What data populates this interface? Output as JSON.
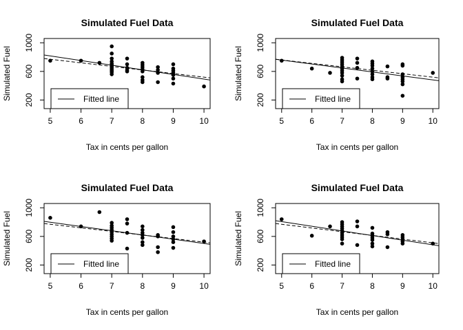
{
  "chart_data": [
    {
      "type": "scatter",
      "title": "Simulated Fuel Data",
      "xlabel": "Tax in cents per gallon",
      "ylabel": "Simulated Fuel",
      "xlim": [
        4.8,
        10.2
      ],
      "ylim": [
        80,
        1060
      ],
      "x_ticks": [
        5,
        6,
        7,
        8,
        9,
        10
      ],
      "y_ticks": [
        200,
        600,
        1000
      ],
      "legend": {
        "position": "bottom-left",
        "entries": [
          "Fitted line"
        ]
      },
      "grid": false,
      "fitted_line": {
        "style": "solid",
        "x": [
          4.8,
          10.2
        ],
        "y": [
          830,
          480
        ]
      },
      "reference_line": {
        "style": "dashed",
        "x": [
          4.8,
          10.2
        ],
        "y": [
          780,
          510
        ]
      },
      "points": [
        {
          "x": 5,
          "y": 750
        },
        {
          "x": 6,
          "y": 750
        },
        {
          "x": 6.6,
          "y": 720
        },
        {
          "x": 7,
          "y": 950
        },
        {
          "x": 7,
          "y": 850
        },
        {
          "x": 7,
          "y": 780
        },
        {
          "x": 7,
          "y": 740
        },
        {
          "x": 7,
          "y": 710
        },
        {
          "x": 7,
          "y": 690
        },
        {
          "x": 7,
          "y": 670
        },
        {
          "x": 7,
          "y": 650
        },
        {
          "x": 7,
          "y": 630
        },
        {
          "x": 7,
          "y": 610
        },
        {
          "x": 7,
          "y": 590
        },
        {
          "x": 7,
          "y": 560
        },
        {
          "x": 7.5,
          "y": 780
        },
        {
          "x": 7.5,
          "y": 700
        },
        {
          "x": 7.5,
          "y": 650
        },
        {
          "x": 7.5,
          "y": 620
        },
        {
          "x": 7.5,
          "y": 600
        },
        {
          "x": 8,
          "y": 720
        },
        {
          "x": 8,
          "y": 690
        },
        {
          "x": 8,
          "y": 660
        },
        {
          "x": 8,
          "y": 630
        },
        {
          "x": 8,
          "y": 600
        },
        {
          "x": 8,
          "y": 520
        },
        {
          "x": 8,
          "y": 480
        },
        {
          "x": 8,
          "y": 450
        },
        {
          "x": 8.5,
          "y": 660
        },
        {
          "x": 8.5,
          "y": 620
        },
        {
          "x": 8.5,
          "y": 580
        },
        {
          "x": 8.5,
          "y": 450
        },
        {
          "x": 9,
          "y": 700
        },
        {
          "x": 9,
          "y": 640
        },
        {
          "x": 9,
          "y": 610
        },
        {
          "x": 9,
          "y": 580
        },
        {
          "x": 9,
          "y": 550
        },
        {
          "x": 9,
          "y": 500
        },
        {
          "x": 9,
          "y": 430
        },
        {
          "x": 10,
          "y": 390
        }
      ]
    },
    {
      "type": "scatter",
      "title": "Simulated Fuel Data",
      "xlabel": "Tax in cents per gallon",
      "ylabel": "Simulated Fuel",
      "xlim": [
        4.8,
        10.2
      ],
      "ylim": [
        80,
        1060
      ],
      "x_ticks": [
        5,
        6,
        7,
        8,
        9,
        10
      ],
      "y_ticks": [
        200,
        600,
        1000
      ],
      "legend": {
        "position": "bottom-left",
        "entries": [
          "Fitted line"
        ]
      },
      "grid": false,
      "fitted_line": {
        "style": "solid",
        "x": [
          4.8,
          10.2
        ],
        "y": [
          770,
          470
        ]
      },
      "reference_line": {
        "style": "dashed",
        "x": [
          4.8,
          10.2
        ],
        "y": [
          770,
          510
        ]
      },
      "points": [
        {
          "x": 5,
          "y": 750
        },
        {
          "x": 6,
          "y": 640
        },
        {
          "x": 6.6,
          "y": 580
        },
        {
          "x": 7,
          "y": 790
        },
        {
          "x": 7,
          "y": 760
        },
        {
          "x": 7,
          "y": 730
        },
        {
          "x": 7,
          "y": 700
        },
        {
          "x": 7,
          "y": 670
        },
        {
          "x": 7,
          "y": 640
        },
        {
          "x": 7,
          "y": 610
        },
        {
          "x": 7,
          "y": 580
        },
        {
          "x": 7,
          "y": 540
        },
        {
          "x": 7,
          "y": 490
        },
        {
          "x": 7,
          "y": 460
        },
        {
          "x": 7.5,
          "y": 780
        },
        {
          "x": 7.5,
          "y": 720
        },
        {
          "x": 7.5,
          "y": 650
        },
        {
          "x": 7.5,
          "y": 500
        },
        {
          "x": 8,
          "y": 740
        },
        {
          "x": 8,
          "y": 710
        },
        {
          "x": 8,
          "y": 680
        },
        {
          "x": 8,
          "y": 640
        },
        {
          "x": 8,
          "y": 600
        },
        {
          "x": 8,
          "y": 560
        },
        {
          "x": 8,
          "y": 520
        },
        {
          "x": 8,
          "y": 490
        },
        {
          "x": 8.5,
          "y": 670
        },
        {
          "x": 8.5,
          "y": 520
        },
        {
          "x": 8.5,
          "y": 500
        },
        {
          "x": 9,
          "y": 700
        },
        {
          "x": 9,
          "y": 680
        },
        {
          "x": 9,
          "y": 560
        },
        {
          "x": 9,
          "y": 520
        },
        {
          "x": 9,
          "y": 490
        },
        {
          "x": 9,
          "y": 460
        },
        {
          "x": 9,
          "y": 420
        },
        {
          "x": 9,
          "y": 260
        },
        {
          "x": 10,
          "y": 580
        }
      ]
    },
    {
      "type": "scatter",
      "title": "Simulated Fuel Data",
      "xlabel": "Tax in cents per gallon",
      "ylabel": "Simulated Fuel",
      "xlim": [
        4.8,
        10.2
      ],
      "ylim": [
        80,
        1060
      ],
      "x_ticks": [
        5,
        6,
        7,
        8,
        9,
        10
      ],
      "y_ticks": [
        200,
        600,
        1000
      ],
      "legend": {
        "position": "bottom-left",
        "entries": [
          "Fitted line"
        ]
      },
      "grid": false,
      "fitted_line": {
        "style": "solid",
        "x": [
          4.8,
          10.2
        ],
        "y": [
          810,
          490
        ]
      },
      "reference_line": {
        "style": "dashed",
        "x": [
          4.8,
          10.2
        ],
        "y": [
          780,
          510
        ]
      },
      "points": [
        {
          "x": 5,
          "y": 860
        },
        {
          "x": 6,
          "y": 740
        },
        {
          "x": 6.6,
          "y": 940
        },
        {
          "x": 7,
          "y": 790
        },
        {
          "x": 7,
          "y": 750
        },
        {
          "x": 7,
          "y": 720
        },
        {
          "x": 7,
          "y": 690
        },
        {
          "x": 7,
          "y": 660
        },
        {
          "x": 7,
          "y": 630
        },
        {
          "x": 7,
          "y": 600
        },
        {
          "x": 7,
          "y": 570
        },
        {
          "x": 7,
          "y": 540
        },
        {
          "x": 7.5,
          "y": 840
        },
        {
          "x": 7.5,
          "y": 780
        },
        {
          "x": 7.5,
          "y": 650
        },
        {
          "x": 7.5,
          "y": 430
        },
        {
          "x": 8,
          "y": 740
        },
        {
          "x": 8,
          "y": 690
        },
        {
          "x": 8,
          "y": 650
        },
        {
          "x": 8,
          "y": 620
        },
        {
          "x": 8,
          "y": 580
        },
        {
          "x": 8,
          "y": 520
        },
        {
          "x": 8,
          "y": 480
        },
        {
          "x": 8.5,
          "y": 620
        },
        {
          "x": 8.5,
          "y": 600
        },
        {
          "x": 8.5,
          "y": 450
        },
        {
          "x": 8.5,
          "y": 380
        },
        {
          "x": 9,
          "y": 730
        },
        {
          "x": 9,
          "y": 660
        },
        {
          "x": 9,
          "y": 600
        },
        {
          "x": 9,
          "y": 560
        },
        {
          "x": 9,
          "y": 520
        },
        {
          "x": 9,
          "y": 440
        },
        {
          "x": 10,
          "y": 530
        }
      ]
    },
    {
      "type": "scatter",
      "title": "Simulated Fuel Data",
      "xlabel": "Tax in cents per gallon",
      "ylabel": "Simulated Fuel",
      "xlim": [
        4.8,
        10.2
      ],
      "ylim": [
        80,
        1060
      ],
      "x_ticks": [
        5,
        6,
        7,
        8,
        9,
        10
      ],
      "y_ticks": [
        200,
        600,
        1000
      ],
      "legend": {
        "position": "bottom-left",
        "entries": [
          "Fitted line"
        ]
      },
      "grid": false,
      "fitted_line": {
        "style": "solid",
        "x": [
          4.8,
          10.2
        ],
        "y": [
          820,
          470
        ]
      },
      "reference_line": {
        "style": "dashed",
        "x": [
          4.8,
          10.2
        ],
        "y": [
          780,
          500
        ]
      },
      "points": [
        {
          "x": 5,
          "y": 840
        },
        {
          "x": 6,
          "y": 610
        },
        {
          "x": 6.6,
          "y": 740
        },
        {
          "x": 7,
          "y": 800
        },
        {
          "x": 7,
          "y": 770
        },
        {
          "x": 7,
          "y": 740
        },
        {
          "x": 7,
          "y": 710
        },
        {
          "x": 7,
          "y": 680
        },
        {
          "x": 7,
          "y": 650
        },
        {
          "x": 7,
          "y": 620
        },
        {
          "x": 7,
          "y": 590
        },
        {
          "x": 7,
          "y": 560
        },
        {
          "x": 7,
          "y": 500
        },
        {
          "x": 7.5,
          "y": 810
        },
        {
          "x": 7.5,
          "y": 740
        },
        {
          "x": 7.5,
          "y": 480
        },
        {
          "x": 8,
          "y": 720
        },
        {
          "x": 8,
          "y": 640
        },
        {
          "x": 8,
          "y": 610
        },
        {
          "x": 8,
          "y": 580
        },
        {
          "x": 8,
          "y": 550
        },
        {
          "x": 8,
          "y": 500
        },
        {
          "x": 8,
          "y": 460
        },
        {
          "x": 8.5,
          "y": 660
        },
        {
          "x": 8.5,
          "y": 630
        },
        {
          "x": 8.5,
          "y": 450
        },
        {
          "x": 9,
          "y": 620
        },
        {
          "x": 9,
          "y": 590
        },
        {
          "x": 9,
          "y": 560
        },
        {
          "x": 9,
          "y": 530
        },
        {
          "x": 9,
          "y": 500
        },
        {
          "x": 10,
          "y": 500
        }
      ]
    }
  ]
}
